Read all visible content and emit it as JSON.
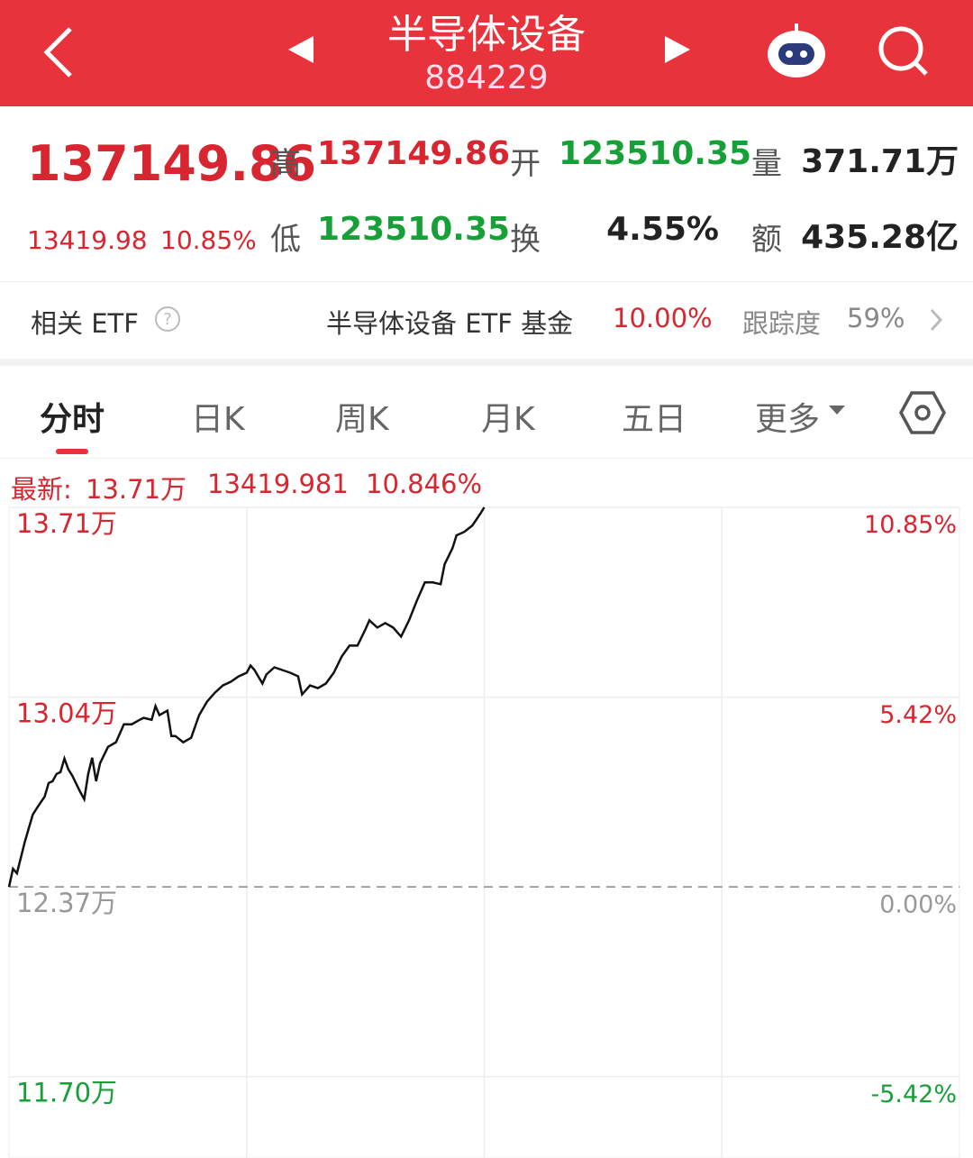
{
  "header": {
    "title": "半导体设备",
    "code": "884229"
  },
  "quote": {
    "price": "137149.86",
    "change": "13419.98",
    "change_pct": "10.85%",
    "fields": [
      {
        "label": "高",
        "value": "137149.86"
      },
      {
        "label": "开",
        "value": "123510.35"
      },
      {
        "label": "量",
        "value": "371.71万"
      },
      {
        "label": "低",
        "value": "123510.35"
      },
      {
        "label": "换",
        "value": "4.55%"
      },
      {
        "label": "额",
        "value": "435.28亿"
      }
    ]
  },
  "etf": {
    "label": "相关 ETF",
    "name": "半导体设备 ETF 基金",
    "pct": "10.00%",
    "track_label": "跟踪度",
    "track": "59%"
  },
  "tabs": [
    "分时",
    "日K",
    "周K",
    "月K",
    "五日",
    "更多"
  ],
  "latest": {
    "label": "最新:",
    "price": "13.71万",
    "change": "13419.981",
    "pct": "10.846%"
  },
  "chart_data": {
    "type": "line",
    "x": [
      0,
      1,
      2,
      4,
      6,
      7,
      9,
      10,
      11,
      12,
      13,
      14,
      15,
      16,
      18,
      19,
      20,
      21,
      22,
      23,
      25,
      27,
      29,
      31,
      33,
      34,
      36,
      37,
      38,
      40,
      41,
      42,
      44,
      46,
      48,
      50,
      52,
      54,
      56,
      58,
      60,
      61,
      62,
      64,
      65,
      67,
      69,
      71,
      73,
      74,
      76,
      78,
      80,
      82,
      84,
      86,
      88,
      90,
      91,
      93,
      95,
      97,
      99,
      101,
      103,
      105,
      107,
      109,
      110,
      112,
      113,
      115,
      117,
      119,
      120
    ],
    "series": [
      {
        "color": "#111111",
        "values": [
          123730,
          124369,
          124209,
          125328,
          126286,
          126510,
          126925,
          127404,
          127468,
          127724,
          127788,
          128267,
          127884,
          127660,
          127085,
          126829,
          127724,
          128299,
          127468,
          128107,
          128682,
          128842,
          129481,
          129481,
          129641,
          129705,
          129641,
          130120,
          129801,
          129960,
          129066,
          129066,
          128842,
          129002,
          129801,
          130280,
          130599,
          130855,
          130983,
          131174,
          131302,
          131558,
          131398,
          130919,
          131238,
          131494,
          131398,
          131302,
          131174,
          130535,
          130855,
          130759,
          130919,
          131302,
          131877,
          132261,
          132261,
          132836,
          133155,
          132900,
          133059,
          132900,
          132580,
          133155,
          133858,
          134497,
          134497,
          134433,
          135136,
          135711,
          136158,
          136286,
          136510,
          136925,
          137150
        ]
      }
    ],
    "xlim": [
      0,
      240
    ],
    "xticks": [
      60,
      120,
      180
    ],
    "ylim": [
      115100,
      137150
    ],
    "yticks": [
      {
        "value": 137150,
        "label": "13.71万"
      },
      {
        "value": 130440,
        "label": "13.04万"
      },
      {
        "value": 123730,
        "label": "12.37万"
      },
      {
        "value": 117020,
        "label": "11.70万"
      }
    ],
    "y2lim": [
      -6.97,
      10.85
    ],
    "y2ticks": [
      {
        "value": 10.85,
        "label": "10.85%"
      },
      {
        "value": 5.42,
        "label": "5.42%"
      },
      {
        "value": 0,
        "label": "0.00%"
      },
      {
        "value": -5.42,
        "label": "-5.42%"
      }
    ],
    "grid": true
  }
}
